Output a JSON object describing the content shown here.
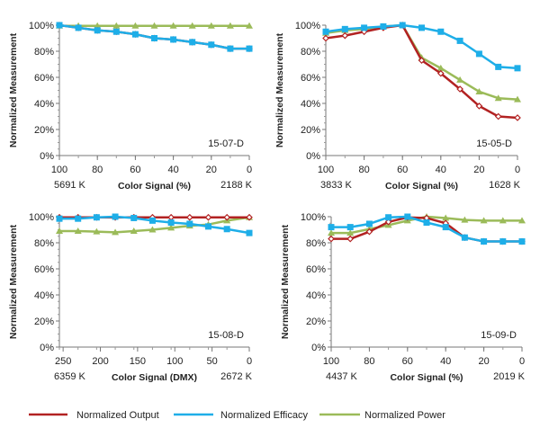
{
  "legend": [
    {
      "name": "Normalized Output",
      "color": "#b22222"
    },
    {
      "name": "Normalized Efficacy",
      "color": "#1eaee8"
    },
    {
      "name": "Normalized Power",
      "color": "#9bbb59"
    }
  ],
  "chart_data": [
    {
      "type": "line",
      "label": "15-07-D",
      "xlabel": "Color Signal (%)",
      "ylabel": "Normalized Measurement",
      "x_end_labels": [
        "5691 K",
        "2188 K"
      ],
      "xlim": [
        100,
        0
      ],
      "ylim": [
        0,
        100
      ],
      "xticks": [
        100,
        80,
        60,
        40,
        20,
        0
      ],
      "yticks": [
        "0%",
        "20%",
        "40%",
        "60%",
        "80%",
        "100%"
      ],
      "x": [
        100,
        90,
        80,
        70,
        60,
        50,
        40,
        30,
        20,
        10,
        0
      ],
      "series": [
        {
          "name": "Normalized Output",
          "values": [
            100,
            98,
            96,
            95,
            93,
            90,
            89,
            87,
            85,
            82,
            82
          ]
        },
        {
          "name": "Normalized Efficacy",
          "values": [
            100,
            98,
            96,
            95,
            93,
            90,
            89,
            87,
            85,
            82,
            82
          ]
        },
        {
          "name": "Normalized Power",
          "values": [
            99.5,
            99.5,
            99.5,
            99.5,
            99.5,
            99.5,
            99.5,
            99.5,
            99.5,
            99.5,
            99.5
          ]
        }
      ]
    },
    {
      "type": "line",
      "label": "15-05-D",
      "xlabel": "Color Signal (%)",
      "ylabel": "Normalized Measurement",
      "x_end_labels": [
        "3833 K",
        "1628 K"
      ],
      "xlim": [
        100,
        0
      ],
      "ylim": [
        0,
        100
      ],
      "xticks": [
        100,
        80,
        60,
        40,
        20,
        0
      ],
      "yticks": [
        "0%",
        "20%",
        "40%",
        "60%",
        "80%",
        "100%"
      ],
      "x": [
        100,
        90,
        80,
        70,
        60,
        50,
        40,
        30,
        20,
        10,
        0
      ],
      "series": [
        {
          "name": "Normalized Output",
          "values": [
            90,
            92,
            95,
            98,
            100,
            73,
            63,
            51,
            38,
            30,
            29
          ]
        },
        {
          "name": "Normalized Efficacy",
          "values": [
            95,
            97,
            98,
            99,
            100,
            98,
            95,
            88,
            78,
            68,
            67
          ]
        },
        {
          "name": "Normalized Power",
          "values": [
            94,
            96,
            97,
            99,
            100,
            75,
            67,
            58,
            49,
            44,
            43
          ]
        }
      ]
    },
    {
      "type": "line",
      "label": "15-08-D",
      "xlabel": "Color Signal (DMX)",
      "ylabel": "Normalized Measurement",
      "x_end_labels": [
        "6359 K",
        "2672 K"
      ],
      "xlim": [
        255,
        0
      ],
      "ylim": [
        0,
        100
      ],
      "xticks": [
        250,
        200,
        150,
        100,
        50,
        0
      ],
      "yticks": [
        "0%",
        "20%",
        "40%",
        "60%",
        "80%",
        "100%"
      ],
      "x": [
        255,
        230,
        205,
        180,
        155,
        130,
        105,
        80,
        55,
        30,
        0
      ],
      "series": [
        {
          "name": "Normalized Output",
          "values": [
            99.5,
            99.5,
            99.5,
            99.5,
            99.5,
            99.5,
            99.5,
            99.5,
            99.5,
            99.5,
            99.5
          ]
        },
        {
          "name": "Normalized Efficacy",
          "values": [
            98.5,
            98.5,
            99.5,
            100,
            99,
            97,
            95.5,
            94.5,
            92.5,
            90.5,
            87.5
          ]
        },
        {
          "name": "Normalized Power",
          "values": [
            89,
            89,
            88.5,
            88,
            89,
            90,
            91.5,
            93,
            94,
            97,
            99.5
          ]
        }
      ]
    },
    {
      "type": "line",
      "label": "15-09-D",
      "xlabel": "Color Signal (%)",
      "ylabel": "Normalized Measurement",
      "x_end_labels": [
        "4437 K",
        "2019 K"
      ],
      "xlim": [
        100,
        0
      ],
      "ylim": [
        0,
        100
      ],
      "xticks": [
        100,
        80,
        60,
        40,
        20,
        0
      ],
      "yticks": [
        "0%",
        "20%",
        "40%",
        "60%",
        "80%",
        "100%"
      ],
      "x": [
        100,
        90,
        80,
        70,
        60,
        50,
        40,
        30,
        20,
        10,
        0
      ],
      "series": [
        {
          "name": "Normalized Output",
          "values": [
            83,
            83,
            88.5,
            96,
            99.5,
            99,
            95,
            84,
            81,
            81,
            81
          ]
        },
        {
          "name": "Normalized Efficacy",
          "values": [
            92,
            92,
            94.5,
            99.5,
            100,
            95.5,
            92,
            84,
            81,
            81,
            81
          ]
        },
        {
          "name": "Normalized Power",
          "values": [
            87.5,
            87.5,
            90.5,
            93.5,
            97,
            100,
            99,
            97.5,
            97,
            97,
            97
          ]
        }
      ]
    }
  ]
}
